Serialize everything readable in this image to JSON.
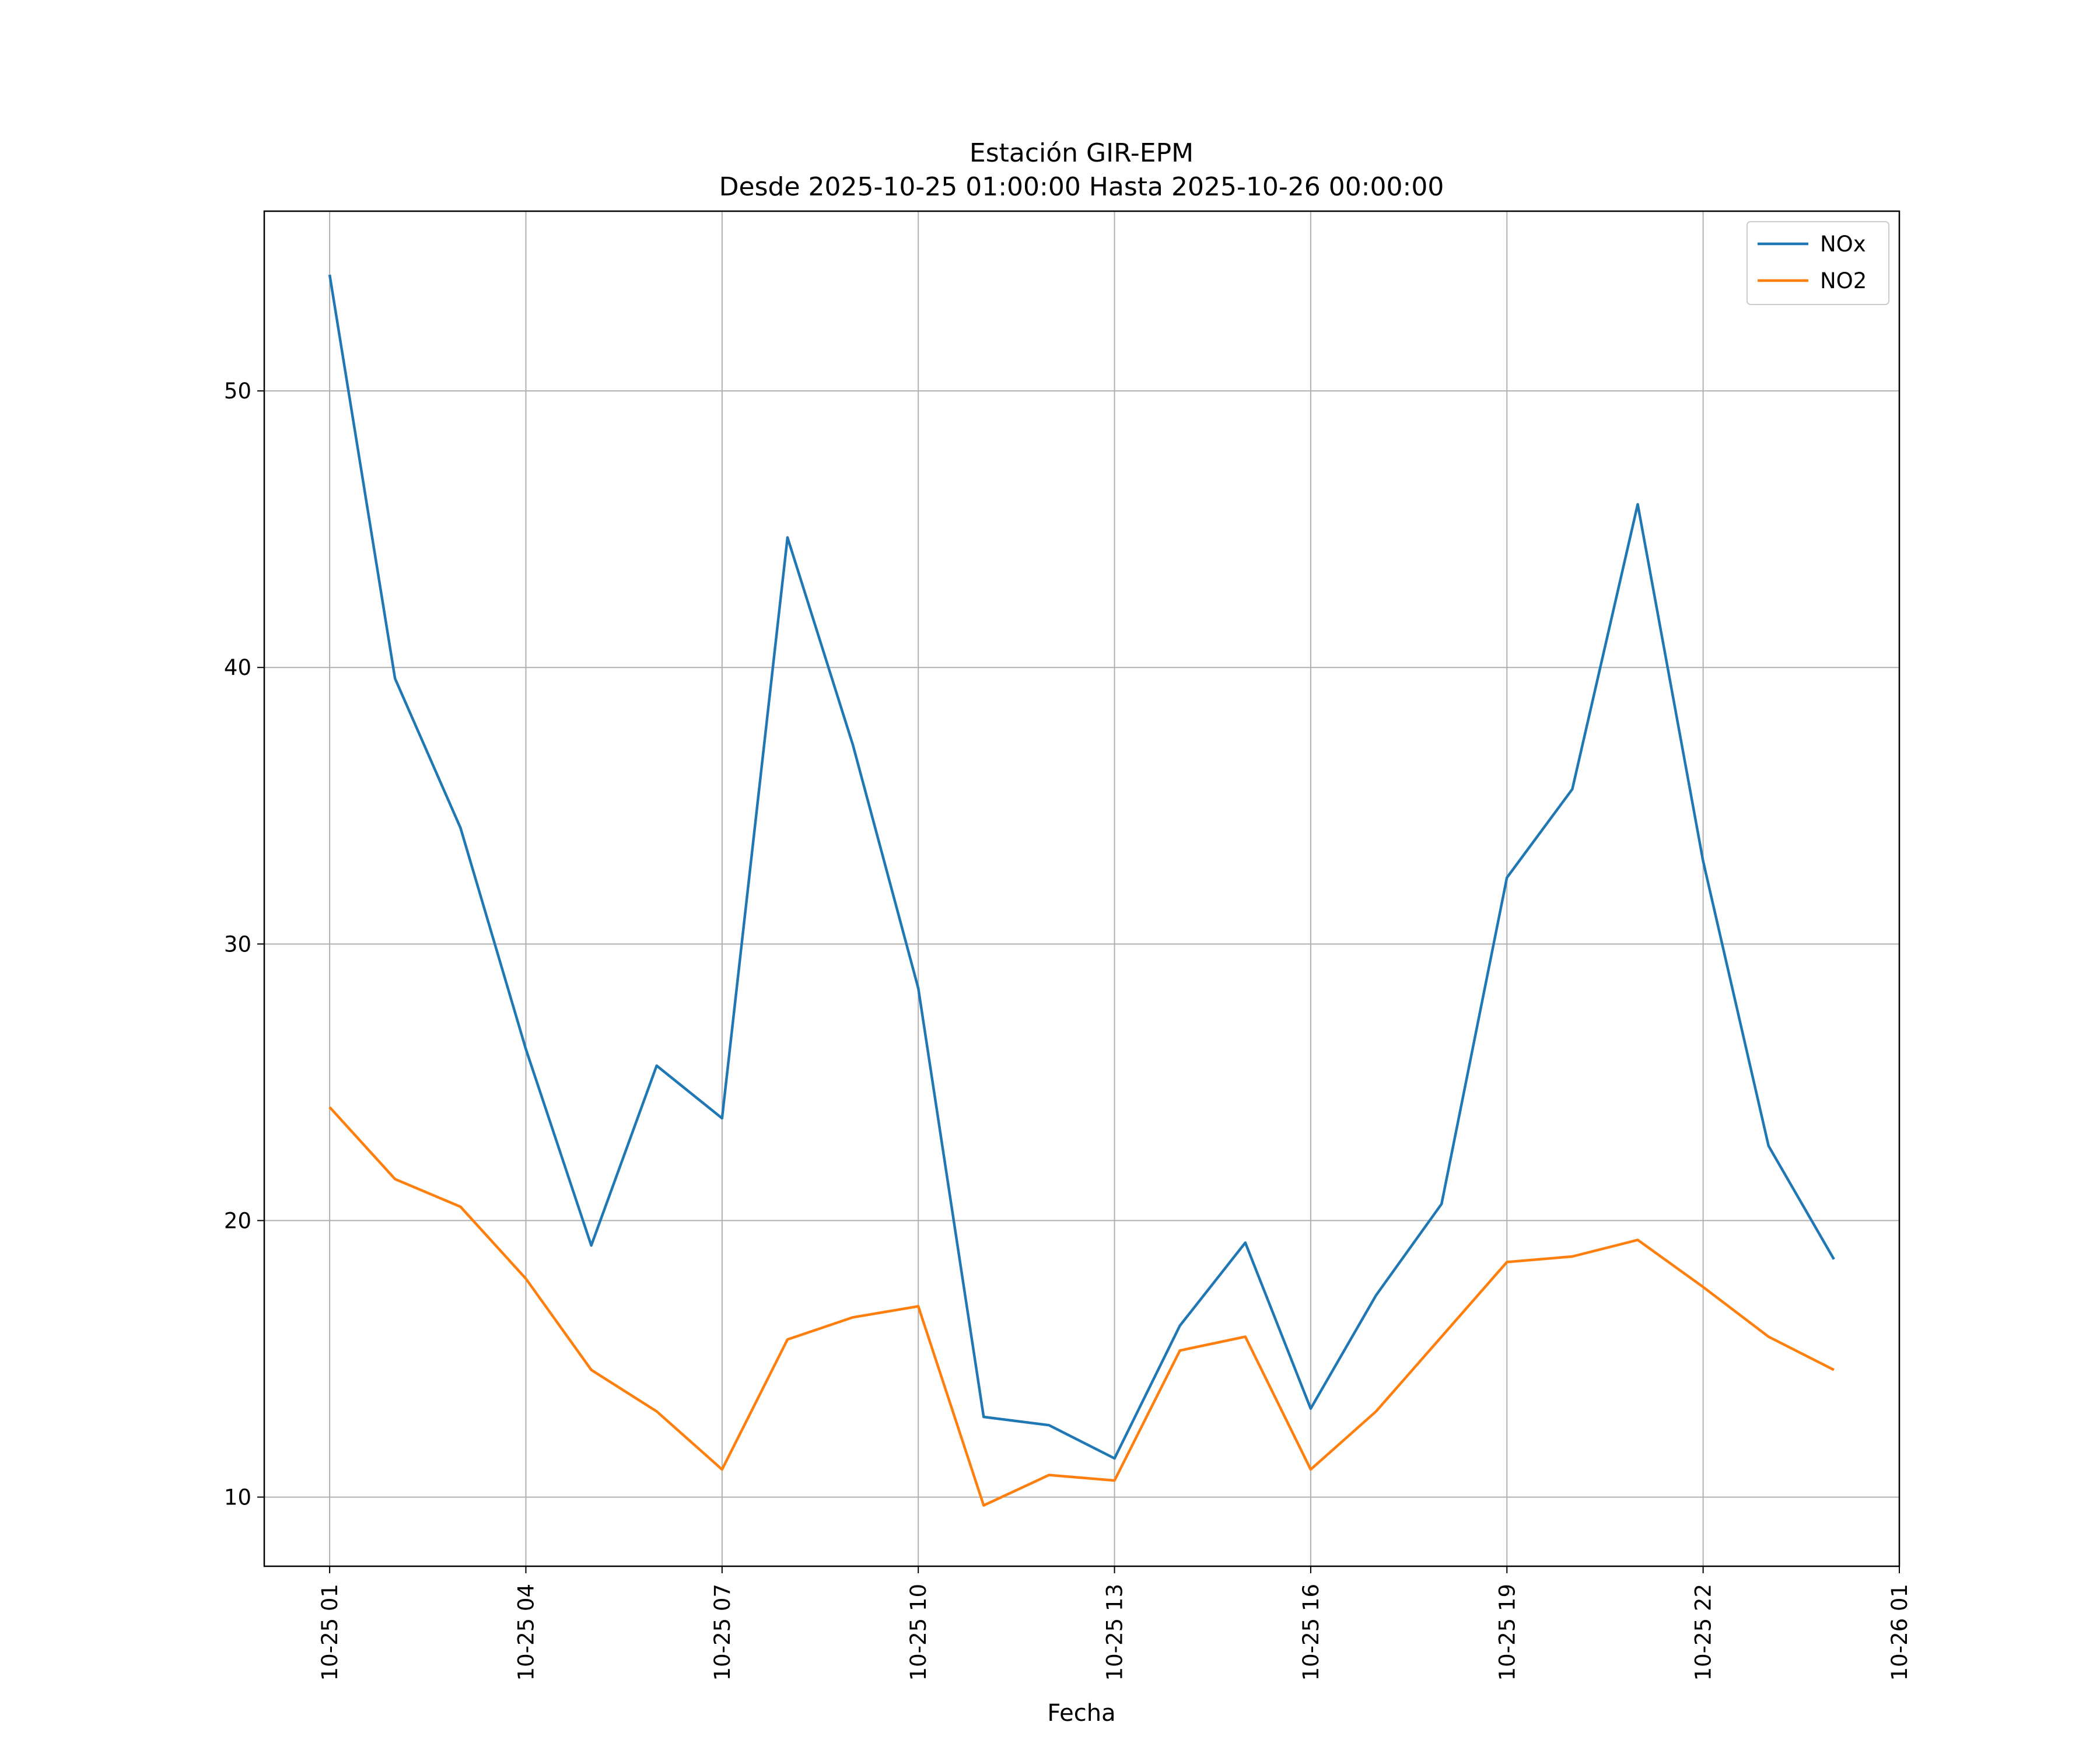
{
  "chart_data": {
    "type": "line",
    "title": "Estación GIR-EPM",
    "subtitle": "Desde 2025-10-25 01:00:00 Hasta 2025-10-26 00:00:00",
    "xlabel": "Fecha",
    "ylabel": "",
    "x": [
      "2025-10-25 01:00",
      "2025-10-25 02:00",
      "2025-10-25 03:00",
      "2025-10-25 04:00",
      "2025-10-25 05:00",
      "2025-10-25 06:00",
      "2025-10-25 07:00",
      "2025-10-25 08:00",
      "2025-10-25 09:00",
      "2025-10-25 10:00",
      "2025-10-25 11:00",
      "2025-10-25 12:00",
      "2025-10-25 13:00",
      "2025-10-25 14:00",
      "2025-10-25 15:00",
      "2025-10-25 16:00",
      "2025-10-25 17:00",
      "2025-10-25 18:00",
      "2025-10-25 19:00",
      "2025-10-25 20:00",
      "2025-10-25 21:00",
      "2025-10-25 22:00",
      "2025-10-25 23:00",
      "2025-10-26 00:00"
    ],
    "xlim": [
      "2025-10-25 00:00",
      "2025-10-26 01:00"
    ],
    "x_ticks": [
      "10-25 01",
      "10-25 04",
      "10-25 07",
      "10-25 10",
      "10-25 13",
      "10-25 16",
      "10-25 19",
      "10-25 22",
      "10-26 01"
    ],
    "ylim": [
      7.5,
      56.5
    ],
    "y_ticks": [
      10,
      20,
      30,
      40,
      50
    ],
    "grid": true,
    "legend": "top-right",
    "series": [
      {
        "name": "NOx",
        "color": "#1f77b4",
        "values": [
          54.2,
          39.6,
          34.2,
          26.2,
          19.1,
          25.6,
          23.7,
          44.7,
          37.2,
          28.4,
          12.9,
          12.6,
          11.4,
          16.2,
          19.2,
          13.2,
          17.3,
          20.6,
          32.4,
          35.6,
          45.9,
          33.0,
          22.7,
          18.6
        ]
      },
      {
        "name": "NO2",
        "color": "#ff7f0e",
        "values": [
          24.1,
          21.5,
          20.5,
          17.9,
          14.6,
          13.1,
          11.0,
          15.7,
          16.5,
          16.9,
          9.7,
          10.8,
          10.6,
          15.3,
          15.8,
          11.0,
          13.1,
          15.8,
          18.5,
          18.7,
          19.3,
          17.6,
          15.8,
          14.6
        ]
      }
    ]
  }
}
